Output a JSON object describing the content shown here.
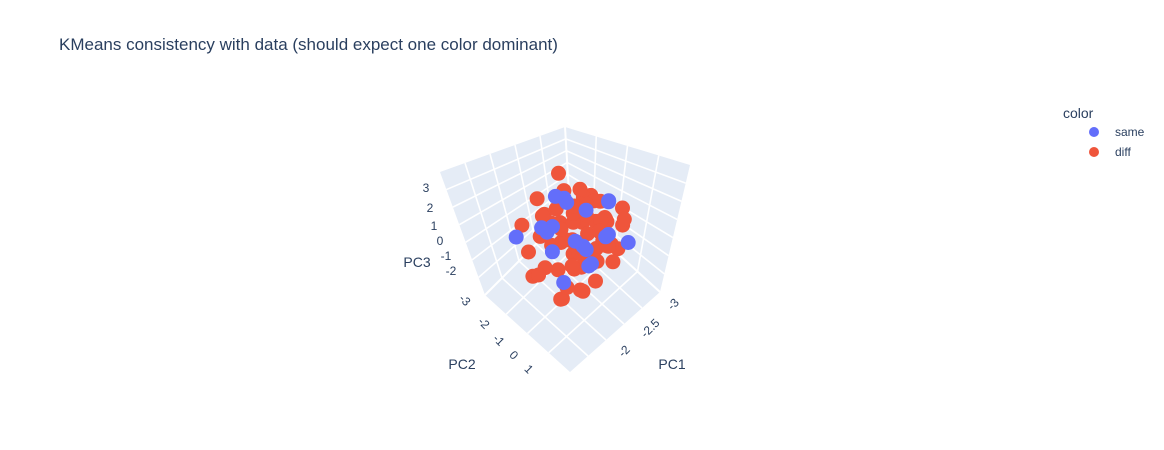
{
  "chart_data": {
    "type": "scatter",
    "title": "KMeans consistency with data (should expect one color dominant)",
    "axes": {
      "x": {
        "label": "PC1",
        "ticks": [
          "-3",
          "-2.5",
          "-2"
        ]
      },
      "y": {
        "label": "PC2",
        "ticks": [
          "-3",
          "-2",
          "-1",
          "0",
          "1"
        ]
      },
      "z": {
        "label": "PC3",
        "ticks": [
          "-2",
          "-1",
          "0",
          "1",
          "2",
          "3"
        ]
      }
    },
    "legend": {
      "title": "color",
      "placement": "top-right",
      "items": [
        {
          "name": "same",
          "color": "#636efa"
        },
        {
          "name": "diff",
          "color": "#ef553b"
        }
      ]
    },
    "series": [
      {
        "name": "diff",
        "color": "#ef553b",
        "points": [
          [
            -2.95,
            -1.2,
            0.4
          ],
          [
            -2.88,
            -0.8,
            0.9
          ],
          [
            -2.8,
            -0.3,
            1.2
          ],
          [
            -2.72,
            0.1,
            0.6
          ],
          [
            -2.66,
            -1.6,
            0.2
          ],
          [
            -2.6,
            -0.5,
            1.8
          ],
          [
            -2.55,
            0.4,
            1.5
          ],
          [
            -2.5,
            -1.0,
            2.2
          ],
          [
            -2.45,
            -0.2,
            2.6
          ],
          [
            -2.4,
            0.6,
            0.9
          ],
          [
            -2.35,
            -1.4,
            1.0
          ],
          [
            -2.3,
            -0.7,
            0.1
          ],
          [
            -2.25,
            0.2,
            -0.3
          ],
          [
            -2.2,
            0.8,
            0.5
          ],
          [
            -2.15,
            -1.8,
            0.7
          ],
          [
            -2.1,
            -0.4,
            -0.6
          ],
          [
            -2.05,
            0.5,
            -0.9
          ],
          [
            -2.0,
            -1.1,
            -1.2
          ],
          [
            -1.95,
            0.0,
            -1.5
          ],
          [
            -1.9,
            0.9,
            -0.2
          ],
          [
            -2.9,
            0.3,
            0.0
          ],
          [
            -2.85,
            -1.9,
            1.4
          ],
          [
            -2.78,
            -0.9,
            -0.4
          ],
          [
            -2.7,
            0.7,
            1.9
          ],
          [
            -2.63,
            -0.1,
            -0.8
          ],
          [
            -2.58,
            -1.3,
            -0.1
          ],
          [
            -2.52,
            0.9,
            0.3
          ],
          [
            -2.47,
            -0.6,
            0.8
          ],
          [
            -2.42,
            0.3,
            1.7
          ],
          [
            -2.37,
            -1.7,
            1.6
          ],
          [
            -2.32,
            -0.3,
            2.0
          ],
          [
            -2.27,
            0.6,
            -1.0
          ],
          [
            -2.22,
            -0.9,
            1.3
          ],
          [
            -2.17,
            0.0,
            0.4
          ],
          [
            -2.12,
            -1.5,
            -0.5
          ],
          [
            -2.07,
            0.4,
            1.1
          ],
          [
            -2.02,
            -0.8,
            2.4
          ],
          [
            -1.97,
            0.7,
            0.8
          ],
          [
            -1.92,
            -0.5,
            0.0
          ],
          [
            -1.88,
            0.2,
            -1.1
          ],
          [
            -2.93,
            -0.4,
            -0.2
          ],
          [
            -2.83,
            0.5,
            0.7
          ],
          [
            -2.74,
            -1.1,
            0.5
          ],
          [
            -2.64,
            0.0,
            0.2
          ],
          [
            -2.56,
            -0.7,
            -0.9
          ],
          [
            -2.48,
            0.8,
            -0.4
          ],
          [
            -2.38,
            -1.2,
            -0.7
          ],
          [
            -2.28,
            -0.1,
            0.6
          ],
          [
            -2.18,
            0.5,
            1.9
          ],
          [
            -2.08,
            -1.0,
            0.9
          ],
          [
            -2.98,
            -0.9,
            0.2
          ],
          [
            -2.76,
            -0.2,
            0.3
          ],
          [
            -2.54,
            0.2,
            0.7
          ],
          [
            -2.34,
            -0.6,
            0.2
          ],
          [
            -2.14,
            0.1,
            -0.3
          ],
          [
            -2.44,
            -0.3,
            3.0
          ],
          [
            -2.36,
            0.1,
            2.7
          ],
          [
            -2.26,
            -0.4,
            -2.1
          ],
          [
            -2.62,
            -0.2,
            -1.6
          ],
          [
            -2.2,
            -1.3,
            -1.9
          ],
          [
            -2.66,
            0.2,
            -0.5
          ],
          [
            -2.5,
            -0.4,
            -0.3
          ],
          [
            -2.3,
            0.3,
            0.1
          ],
          [
            -2.4,
            -0.9,
            0.4
          ],
          [
            -2.6,
            0.5,
            0.0
          ],
          [
            -2.7,
            -0.6,
            0.5
          ],
          [
            -2.45,
            0.7,
            0.5
          ],
          [
            -2.25,
            -0.2,
            -0.7
          ],
          [
            -2.55,
            -0.8,
            -0.6
          ],
          [
            -2.35,
            0.4,
            -0.2
          ]
        ]
      },
      {
        "name": "same",
        "color": "#636efa",
        "points": [
          [
            -2.9,
            -0.2,
            1.0
          ],
          [
            -2.75,
            -1.5,
            0.6
          ],
          [
            -2.65,
            0.3,
            2.1
          ],
          [
            -2.5,
            -0.9,
            1.6
          ],
          [
            -2.4,
            0.8,
            1.4
          ],
          [
            -2.3,
            -1.2,
            0.3
          ],
          [
            -2.2,
            0.5,
            0.0
          ],
          [
            -2.1,
            -0.6,
            1.7
          ],
          [
            -2.0,
            0.7,
            1.9
          ],
          [
            -1.95,
            -1.6,
            0.8
          ],
          [
            -2.85,
            0.6,
            -0.6
          ],
          [
            -2.6,
            -0.4,
            -1.0
          ],
          [
            -2.45,
            -1.7,
            -0.3
          ],
          [
            -2.35,
            0.1,
            2.4
          ],
          [
            -2.15,
            -0.3,
            -1.4
          ],
          [
            -2.05,
            0.9,
            0.9
          ],
          [
            -2.7,
            -1.0,
            -1.3
          ],
          [
            -2.25,
            -0.8,
            2.8
          ],
          [
            -2.55,
            0.4,
            0.5
          ],
          [
            -1.9,
            -0.2,
            1.2
          ]
        ]
      }
    ]
  }
}
